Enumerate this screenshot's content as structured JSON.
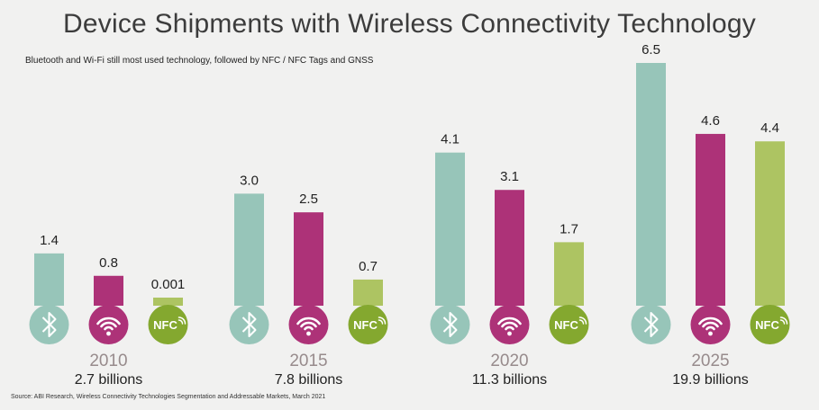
{
  "title": "Device Shipments with Wireless Connectivity Technology",
  "subtitle": "Bluetooth and Wi-Fi still most used technology, followed by  NFC / NFC Tags and GNSS",
  "source": "Source: ABI Research, Wireless Connectivity Technologies Segmentation and Addressable Markets, March 2021",
  "colors": {
    "bluetooth": "#97c5b9",
    "wifi": "#ad3278",
    "nfc": "#adc462",
    "nfc_icon": "#84a82f",
    "year_label": "#978b8c",
    "text": "#222222"
  },
  "chart_data": {
    "type": "bar",
    "categories": [
      "2010",
      "2015",
      "2020",
      "2025"
    ],
    "totals": [
      "2.7 billions",
      "7.8 billions",
      "11.3 billions",
      "19.9 billions"
    ],
    "series": [
      {
        "icon": "bluetooth-icon",
        "values": [
          1.4,
          3.0,
          4.1,
          6.5
        ],
        "labels": [
          "1.4",
          "3.0",
          "4.1",
          "6.5"
        ]
      },
      {
        "icon": "wifi-icon",
        "values": [
          0.8,
          2.5,
          3.1,
          4.6
        ],
        "labels": [
          "0.8",
          "2.5",
          "3.1",
          "4.6"
        ]
      },
      {
        "icon": "nfc-icon",
        "icon_text": "NFC",
        "values": [
          0.001,
          0.7,
          1.7,
          4.4
        ],
        "labels": [
          "0.001",
          "0.7",
          "1.7",
          "4.4"
        ]
      }
    ],
    "ylim": [
      0,
      6.5
    ]
  }
}
